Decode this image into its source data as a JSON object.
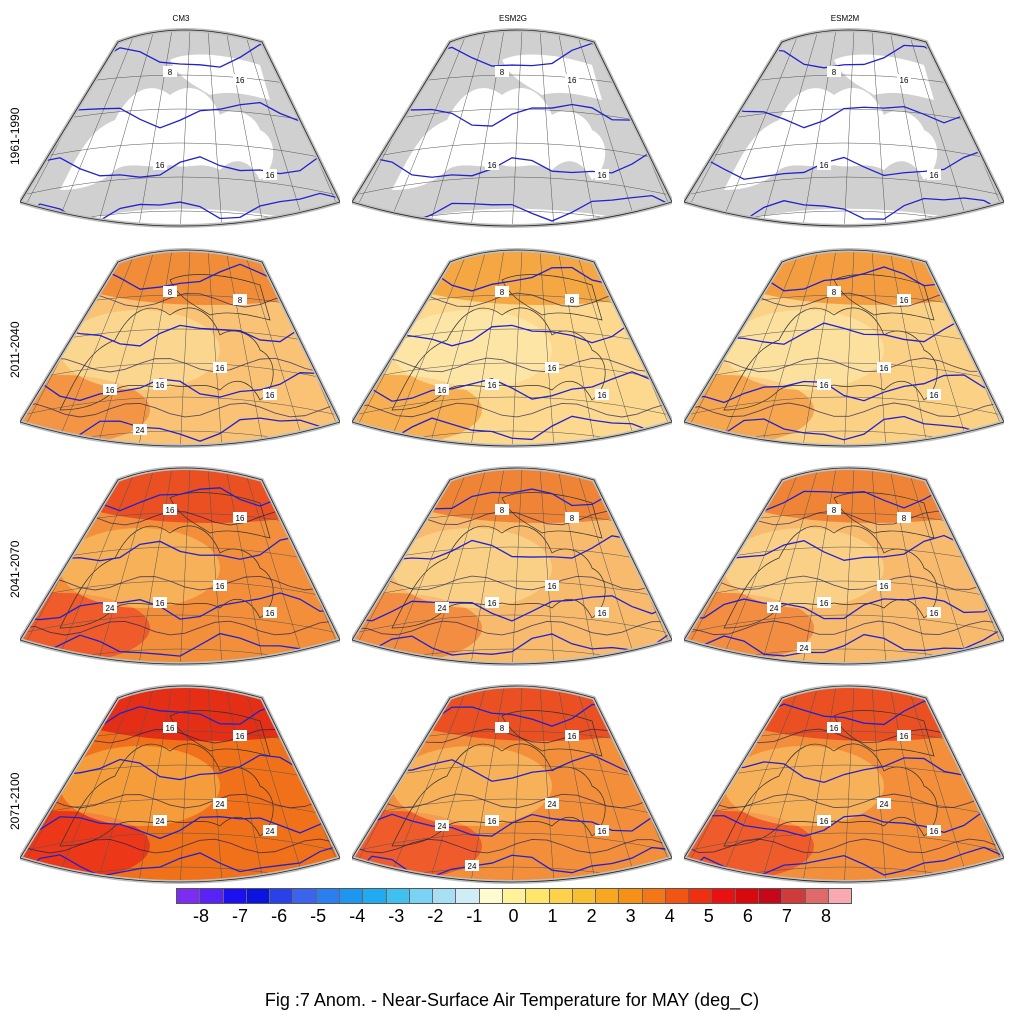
{
  "figure": {
    "title": "Fig :7  Anom.  - Near-Surface Air Temperature for MAY (deg_C)",
    "columns": [
      "CM3",
      "ESM2G",
      "ESM2M"
    ],
    "rows": [
      "1961-1990",
      "2011-2040",
      "2041-2070",
      "2071-2100"
    ]
  },
  "panels": [
    {
      "row": 0,
      "col": 0,
      "labels": [
        "8",
        "16",
        "16",
        "16"
      ],
      "mode": "baseline"
    },
    {
      "row": 0,
      "col": 1,
      "labels": [
        "8",
        "16",
        "16",
        "16"
      ],
      "mode": "baseline"
    },
    {
      "row": 0,
      "col": 2,
      "labels": [
        "8",
        "16",
        "16",
        "16"
      ],
      "mode": "baseline"
    },
    {
      "row": 1,
      "col": 0,
      "labels": [
        "8",
        "8",
        "16",
        "16",
        "16",
        "16",
        "24"
      ],
      "mode": "anomaly",
      "level": 0.35
    },
    {
      "row": 1,
      "col": 1,
      "labels": [
        "8",
        "8",
        "16",
        "16",
        "16",
        "16"
      ],
      "mode": "anomaly",
      "level": 0.2
    },
    {
      "row": 1,
      "col": 2,
      "labels": [
        "8",
        "16",
        "16",
        "16",
        "16"
      ],
      "mode": "anomaly",
      "level": 0.25
    },
    {
      "row": 2,
      "col": 0,
      "labels": [
        "16",
        "16",
        "16",
        "16",
        "16",
        "24"
      ],
      "mode": "anomaly",
      "level": 0.7
    },
    {
      "row": 2,
      "col": 1,
      "labels": [
        "8",
        "8",
        "16",
        "16",
        "16",
        "24"
      ],
      "mode": "anomaly",
      "level": 0.4
    },
    {
      "row": 2,
      "col": 2,
      "labels": [
        "8",
        "8",
        "16",
        "16",
        "16",
        "24",
        "24"
      ],
      "mode": "anomaly",
      "level": 0.4
    },
    {
      "row": 3,
      "col": 0,
      "labels": [
        "16",
        "16",
        "24",
        "24",
        "24"
      ],
      "mode": "anomaly",
      "level": 0.9
    },
    {
      "row": 3,
      "col": 1,
      "labels": [
        "8",
        "16",
        "16",
        "16",
        "24",
        "24",
        "24"
      ],
      "mode": "anomaly",
      "level": 0.7
    },
    {
      "row": 3,
      "col": 2,
      "labels": [
        "16",
        "16",
        "16",
        "16",
        "24"
      ],
      "mode": "anomaly",
      "level": 0.7
    }
  ],
  "colorbar": {
    "ticks": [
      "-8",
      "-7",
      "-6",
      "-5",
      "-4",
      "-3",
      "-2",
      "-1",
      "0",
      "1",
      "2",
      "3",
      "4",
      "5",
      "6",
      "7",
      "8"
    ],
    "colors": [
      "#7b2ef0",
      "#5a23f5",
      "#1a10f0",
      "#0a14e0",
      "#2a40e8",
      "#3a63ee",
      "#2a7ef0",
      "#1e95ef",
      "#22aaf0",
      "#3fc0f0",
      "#7ad2f5",
      "#a8dff2",
      "#d0ecf5",
      "#fffbd0",
      "#fff29a",
      "#ffe66a",
      "#fcd24a",
      "#f8bf30",
      "#f7a820",
      "#f59018",
      "#f47614",
      "#f25512",
      "#ef3010",
      "#e81010",
      "#d8080e",
      "#c4081a",
      "#cf3a3a",
      "#e06a6a",
      "#f8aab0"
    ]
  }
}
